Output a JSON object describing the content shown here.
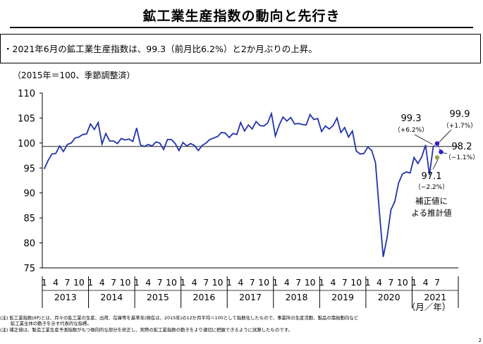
{
  "title": "鉱工業生産指数の動向と先行き",
  "summary": "・2021年6月の鉱工業生産指数は、99.3（前月比6.2%）と2か月ぶりの上昇。",
  "notes": [
    "(注) 鉱工業指数(IIP)とは、月々の鉱工業の生産、出荷、在庫等を基準年(現在は、2015年)の12か月平均＝100として指数化したもので、事業所の生産活動、製品の需給動向など",
    "　　 鉱工業全体の動きを示す代表的な指標。",
    "(注) 補正値は、製造工業生産予測指数がもつ傾向的な部分を修正し、実際の鉱工業指数の動きをより適切に把握できるように試算したものです。"
  ],
  "page_number": "2",
  "colors": {
    "line": "#2233aa",
    "forecast": "#2b1fd6",
    "estimate": "#9aa24e",
    "reference_line": "#000000"
  },
  "chart_data": {
    "type": "line",
    "title": "",
    "ylabel": "（2015年＝100、季節調整済）",
    "xlabel": "（月／年）",
    "ylim": [
      75,
      110
    ],
    "yticks": [
      75,
      80,
      85,
      90,
      95,
      100,
      105,
      110
    ],
    "grid": false,
    "reference_line": 99.3,
    "x_month_labels": [
      "1",
      "4",
      "7",
      "10"
    ],
    "years": [
      "2013",
      "2014",
      "2015",
      "2016",
      "2017",
      "2018",
      "2019",
      "2020",
      "2021"
    ],
    "last_year_month_labels": [
      "1",
      "4",
      "7"
    ],
    "start": "2013-01",
    "series": [
      {
        "values": [
          94.8,
          96.5,
          97.8,
          97.9,
          99.4,
          98.3,
          99.7,
          100.0,
          101.0,
          101.2,
          101.7,
          101.8,
          103.8,
          102.7,
          104.1,
          99.8,
          101.9,
          100.4,
          100.4,
          99.9,
          100.9,
          100.6,
          100.8,
          100.3,
          103.0,
          99.6,
          99.3,
          99.7,
          99.4,
          100.2,
          100.0,
          98.7,
          100.7,
          100.7,
          99.9,
          98.5,
          100.1,
          99.4,
          99.9,
          99.5,
          98.5,
          99.5,
          100.0,
          100.7,
          101.0,
          101.3,
          102.1,
          102.0,
          101.1,
          101.9,
          101.7,
          104.1,
          102.4,
          103.6,
          102.8,
          104.3,
          103.5,
          103.4,
          104.0,
          105.9,
          101.4,
          103.6,
          105.2,
          104.4,
          105.1,
          103.8,
          103.9,
          103.7,
          103.6,
          105.7,
          104.7,
          104.9,
          102.3,
          103.4,
          102.8,
          103.5,
          105.0,
          102.1,
          103.1,
          101.2,
          102.4,
          98.4,
          97.8,
          97.9,
          99.2,
          98.5,
          96.1,
          86.3,
          77.2,
          81.0,
          86.6,
          88.3,
          92.0,
          93.8,
          94.2,
          94.0,
          97.1,
          95.9,
          97.2,
          99.6,
          93.6,
          99.3
        ]
      }
    ],
    "forecasts": [
      {
        "month": "2021-07",
        "value": 99.9,
        "label": "99.9",
        "change": "（+1.7%）"
      },
      {
        "month": "2021-08",
        "value": 98.2,
        "label": "98.2",
        "change": "（−1.1%）"
      }
    ],
    "estimate": {
      "month": "2021-07",
      "value": 97.1,
      "label": "97.1",
      "change": "（−2.2%）",
      "caption": [
        "補正値に",
        "よる推計値"
      ]
    },
    "latest": {
      "label": "99.3",
      "change": "（+6.2%）"
    }
  }
}
